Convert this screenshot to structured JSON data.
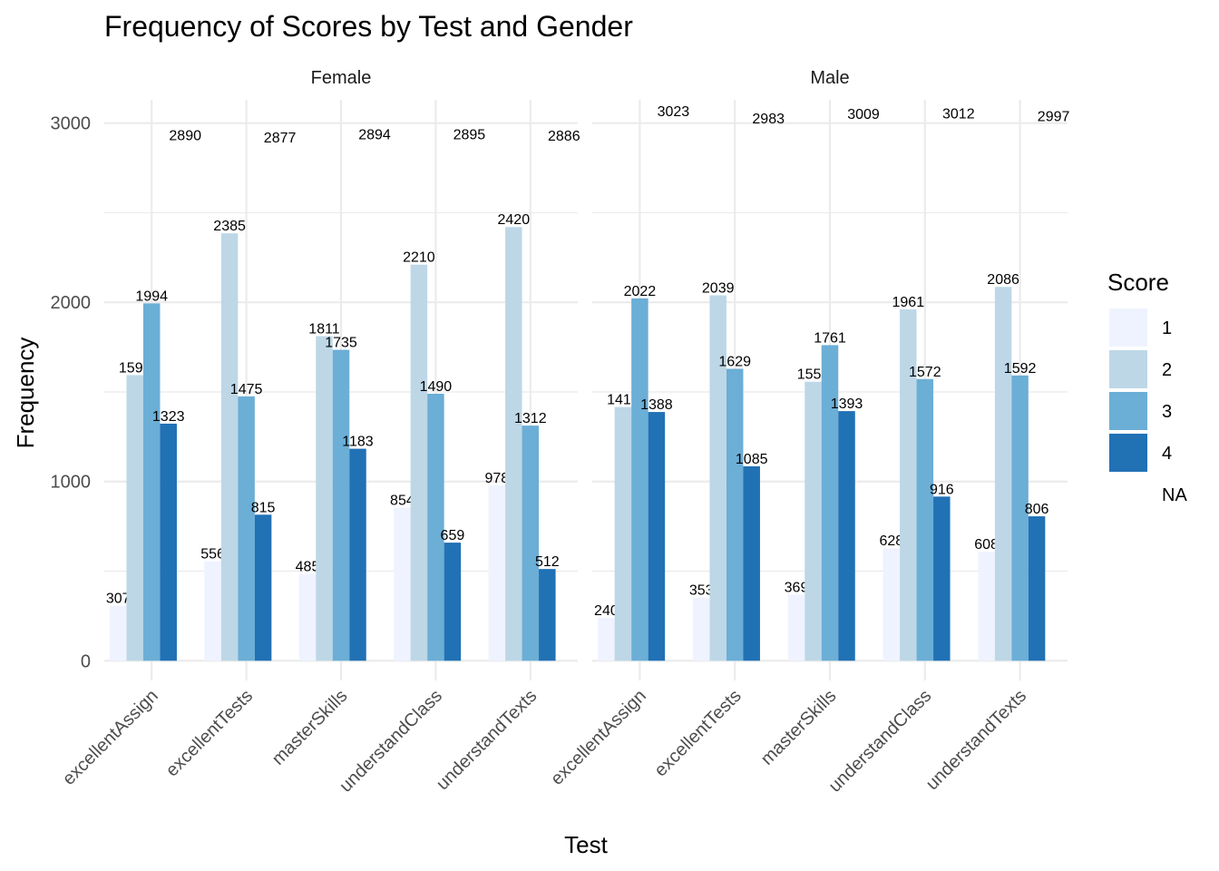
{
  "chart_data": {
    "type": "bar",
    "title": "Frequency of Scores by Test and Gender",
    "xlabel": "Test",
    "ylabel": "Frequency",
    "ylim": [
      -110,
      3130
    ],
    "yticks": [
      0,
      1000,
      2000,
      3000
    ],
    "grid": true,
    "legend_position": "right",
    "legend_title": "Score",
    "categories": [
      "excellentAssign",
      "excellentTests",
      "masterSkills",
      "understandClass",
      "understandTexts"
    ],
    "series_legend": [
      {
        "name": "1",
        "color": "#eff3ff"
      },
      {
        "name": "2",
        "color": "#bdd7e7"
      },
      {
        "name": "3",
        "color": "#6baed6"
      },
      {
        "name": "4",
        "color": "#2171b5"
      },
      {
        "name": "NA",
        "color": null
      }
    ],
    "panels": [
      {
        "label": "Female",
        "series": [
          {
            "name": "1",
            "values": [
              307,
              556,
              485,
              854,
              978
            ]
          },
          {
            "name": "2",
            "values": [
              1594,
              2385,
              1811,
              2210,
              2420
            ]
          },
          {
            "name": "3",
            "values": [
              1994,
              1475,
              1735,
              1490,
              1312
            ]
          },
          {
            "name": "4",
            "values": [
              1323,
              815,
              1183,
              659,
              512
            ]
          },
          {
            "name": "NA",
            "values": [
              2890,
              2877,
              2894,
              2895,
              2886
            ]
          }
        ]
      },
      {
        "label": "Male",
        "series": [
          {
            "name": "1",
            "values": [
              240,
              353,
              369,
              628,
              608
            ]
          },
          {
            "name": "2",
            "values": [
              1416,
              2039,
              1557,
              1961,
              2086
            ]
          },
          {
            "name": "3",
            "values": [
              2022,
              1629,
              1761,
              1572,
              1592
            ]
          },
          {
            "name": "4",
            "values": [
              1388,
              1085,
              1393,
              916,
              806
            ]
          },
          {
            "name": "NA",
            "values": [
              3023,
              2983,
              3009,
              3012,
              2997
            ]
          }
        ]
      }
    ]
  }
}
